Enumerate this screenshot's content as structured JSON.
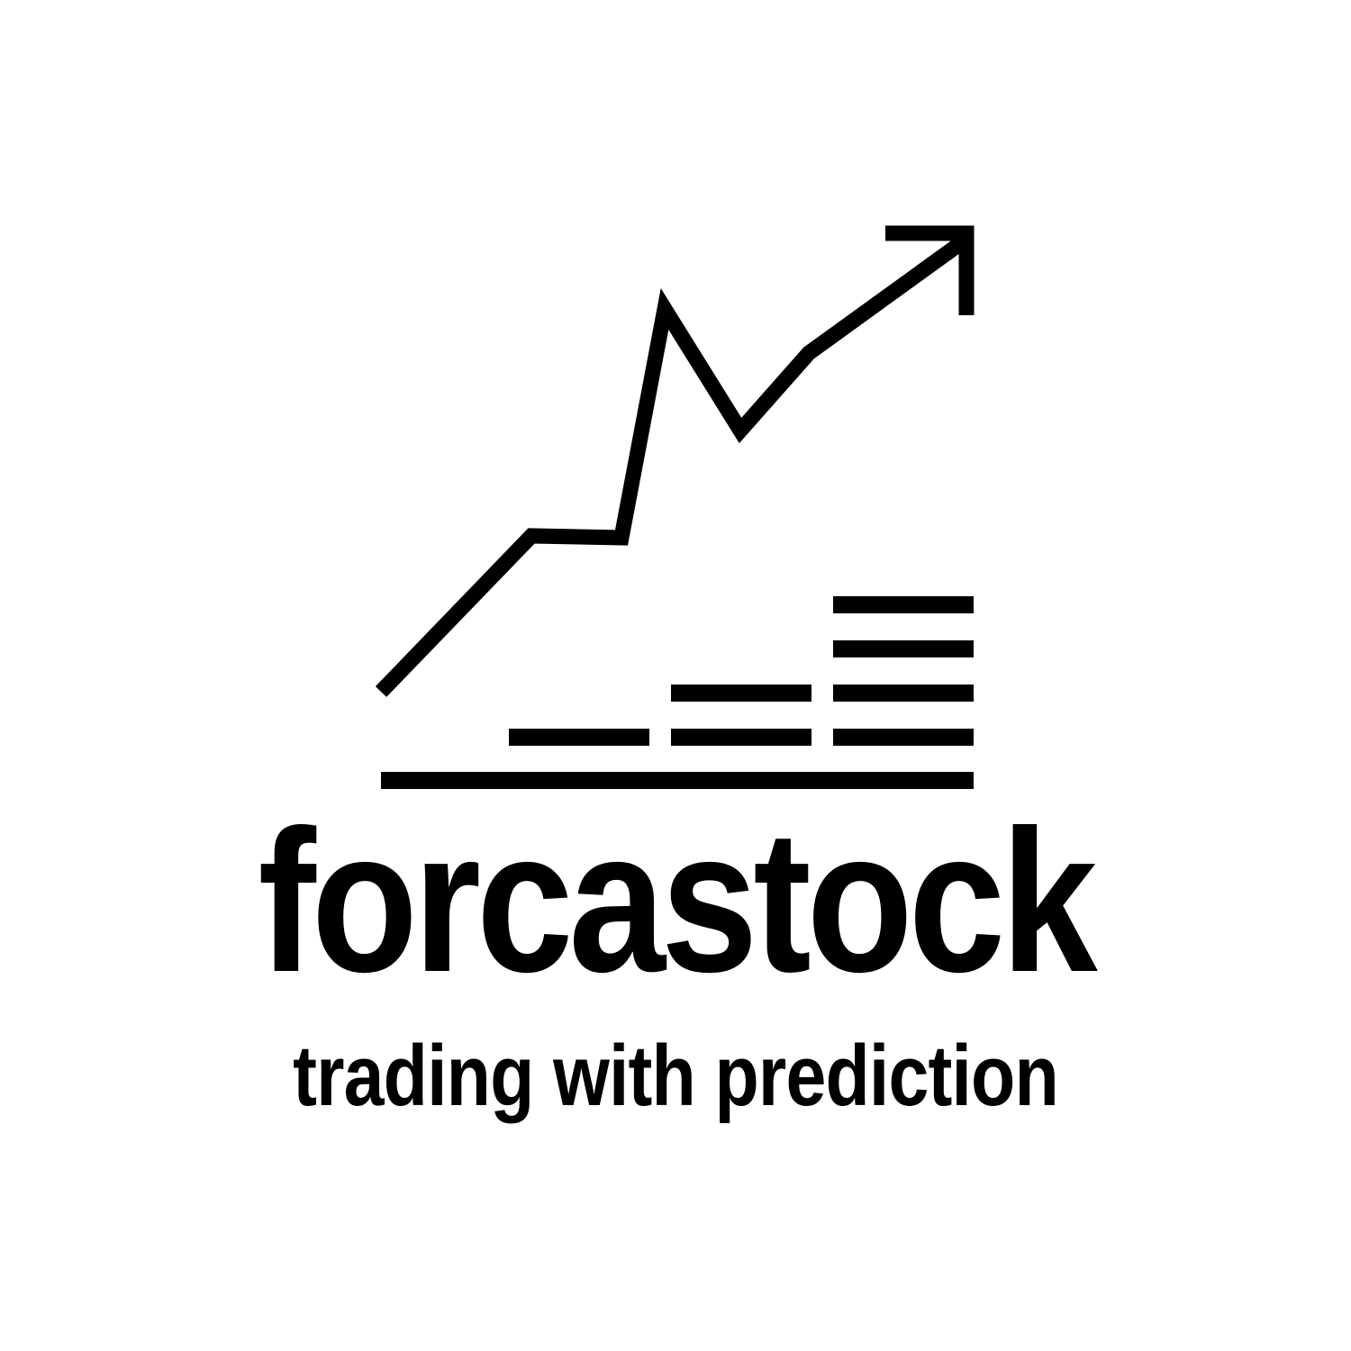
{
  "brand": {
    "name": "forcastock",
    "tagline": "trading with prediction"
  },
  "colors": {
    "ink": "#000000",
    "background": "#ffffff"
  },
  "icons": {
    "emblem": "rising-trend-arrow-with-stacked-bars-icon"
  }
}
